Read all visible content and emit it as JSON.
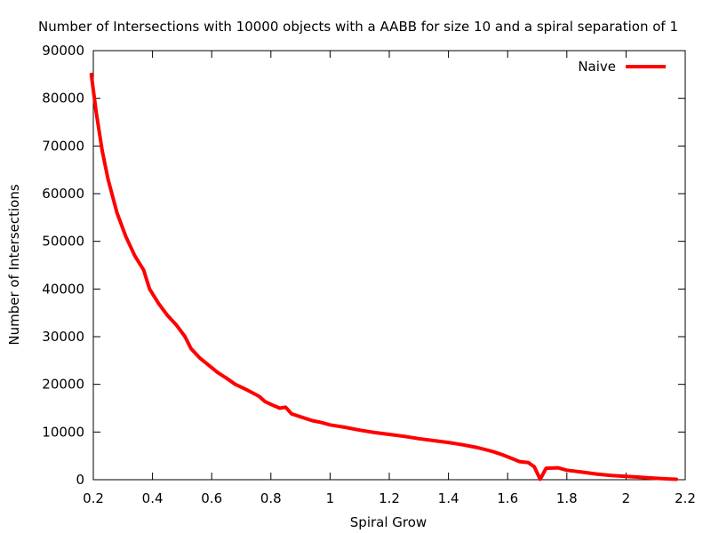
{
  "chart_data": {
    "type": "line",
    "title": "Number of Intersections with 10000 objects with a AABB for size 10 and a spiral separation of 1",
    "xlabel": "Spiral Grow",
    "ylabel": "Number of Intersections",
    "xlim": [
      0.2,
      2.2
    ],
    "ylim": [
      0,
      90000
    ],
    "xticks": [
      0.2,
      0.4,
      0.6,
      0.8,
      1,
      1.2,
      1.4,
      1.6,
      1.8,
      2,
      2.2
    ],
    "xtick_labels": [
      "0.2",
      "0.4",
      "0.6",
      "0.8",
      "1",
      "1.2",
      "1.4",
      "1.6",
      "1.8",
      "2",
      "2.2"
    ],
    "yticks": [
      0,
      10000,
      20000,
      30000,
      40000,
      50000,
      60000,
      70000,
      80000,
      90000
    ],
    "ytick_labels": [
      "0",
      "10000",
      "20000",
      "30000",
      "40000",
      "50000",
      "60000",
      "70000",
      "80000",
      "90000"
    ],
    "grid": false,
    "legend_position": "top-right",
    "series": [
      {
        "name": "Naive",
        "color": "#ff0000",
        "x": [
          0.193,
          0.21,
          0.23,
          0.25,
          0.28,
          0.31,
          0.34,
          0.37,
          0.39,
          0.42,
          0.45,
          0.48,
          0.51,
          0.53,
          0.56,
          0.59,
          0.62,
          0.65,
          0.68,
          0.72,
          0.76,
          0.78,
          0.8,
          0.83,
          0.85,
          0.87,
          0.9,
          0.94,
          0.97,
          1.0,
          1.05,
          1.1,
          1.15,
          1.2,
          1.25,
          1.3,
          1.35,
          1.4,
          1.45,
          1.5,
          1.55,
          1.58,
          1.6,
          1.62,
          1.64,
          1.67,
          1.69,
          1.71,
          1.73,
          1.77,
          1.8,
          1.85,
          1.9,
          1.95,
          2.0,
          2.05,
          2.1,
          2.15,
          2.17
        ],
        "y": [
          85000,
          77000,
          69000,
          63000,
          56000,
          51000,
          47000,
          44000,
          40000,
          37000,
          34500,
          32500,
          30000,
          27500,
          25500,
          24000,
          22500,
          21300,
          20000,
          18800,
          17500,
          16400,
          15800,
          15000,
          15200,
          13800,
          13200,
          12400,
          12000,
          11500,
          11000,
          10400,
          9900,
          9500,
          9100,
          8600,
          8200,
          7800,
          7300,
          6700,
          5900,
          5300,
          4800,
          4300,
          3800,
          3600,
          2700,
          100,
          2400,
          2500,
          2000,
          1600,
          1200,
          900,
          700,
          500,
          300,
          150,
          100
        ]
      }
    ]
  }
}
